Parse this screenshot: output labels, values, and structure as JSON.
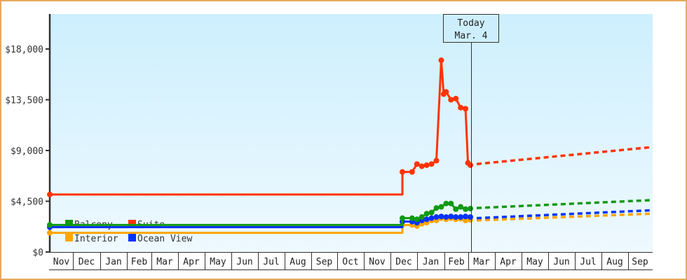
{
  "chart_data": {
    "type": "line",
    "title": "",
    "xlabel": "",
    "ylabel": "",
    "ylim": [
      0,
      21000
    ],
    "y_ticks": [
      "$0",
      "$4,500",
      "$9,000",
      "$13,500",
      "$18,000"
    ],
    "y_tick_values": [
      0,
      4500,
      9000,
      13500,
      18000
    ],
    "x_tick_labels": [
      "Nov",
      "Dec",
      "Jan",
      "Feb",
      "Mar",
      "Apr",
      "May",
      "Jun",
      "Jul",
      "Aug",
      "Sep",
      "Oct",
      "Nov",
      "Dec",
      "Jan",
      "Feb",
      "Mar",
      "Apr",
      "May",
      "Jun",
      "Jul",
      "Aug",
      "Sep"
    ],
    "grid": false,
    "legend_position": "bottom-left inside",
    "today_marker": {
      "line1": "Today",
      "line2": "Mar. 4"
    },
    "series": [
      {
        "name": "Balcony",
        "color": "#119911",
        "historical": [
          [
            0,
            2400
          ],
          [
            31,
            2400
          ],
          [
            31,
            3000
          ],
          [
            33,
            3000
          ],
          [
            34,
            2900
          ],
          [
            35,
            3100
          ],
          [
            36,
            3400
          ],
          [
            37,
            3500
          ],
          [
            38,
            3900
          ],
          [
            39,
            4000
          ],
          [
            40,
            4300
          ],
          [
            41,
            4300
          ],
          [
            42,
            3800
          ],
          [
            43,
            4000
          ],
          [
            44,
            3800
          ],
          [
            45,
            3850
          ]
        ],
        "forecast_start": 3900,
        "forecast_end": 4600
      },
      {
        "name": "Suite",
        "color": "#ff3300",
        "historical": [
          [
            0,
            5100
          ],
          [
            31,
            5100
          ],
          [
            31,
            7100
          ],
          [
            33,
            7100
          ],
          [
            34,
            7800
          ],
          [
            35,
            7600
          ],
          [
            36,
            7700
          ],
          [
            37,
            7800
          ],
          [
            38,
            8100
          ],
          [
            39,
            17000
          ],
          [
            39.5,
            14000
          ],
          [
            40,
            14200
          ],
          [
            41,
            13500
          ],
          [
            42,
            13600
          ],
          [
            43,
            12800
          ],
          [
            44,
            12700
          ],
          [
            44.5,
            7900
          ],
          [
            45,
            7700
          ]
        ],
        "forecast_start": 7800,
        "forecast_end": 9300
      },
      {
        "name": "Interior",
        "color": "#ffa500",
        "historical": [
          [
            0,
            1700
          ],
          [
            31,
            1700
          ],
          [
            31,
            2400
          ],
          [
            33,
            2400
          ],
          [
            34,
            2300
          ],
          [
            35,
            2500
          ],
          [
            36,
            2600
          ],
          [
            37,
            2800
          ],
          [
            38,
            2800
          ],
          [
            39,
            3000
          ],
          [
            40,
            2900
          ],
          [
            41,
            3000
          ],
          [
            42,
            2900
          ],
          [
            43,
            2950
          ],
          [
            44,
            2800
          ],
          [
            45,
            2850
          ]
        ],
        "forecast_start": 2800,
        "forecast_end": 3400
      },
      {
        "name": "Ocean View",
        "color": "#0033ff",
        "historical": [
          [
            0,
            2200
          ],
          [
            31,
            2200
          ],
          [
            31,
            2700
          ],
          [
            33,
            2700
          ],
          [
            34,
            2600
          ],
          [
            35,
            2800
          ],
          [
            36,
            2900
          ],
          [
            37,
            3000
          ],
          [
            38,
            3100
          ],
          [
            39,
            3150
          ],
          [
            40,
            3100
          ],
          [
            41,
            3150
          ],
          [
            42,
            3100
          ],
          [
            43,
            3100
          ],
          [
            44,
            3150
          ],
          [
            45,
            3100
          ]
        ],
        "forecast_start": 3000,
        "forecast_end": 3700
      }
    ]
  },
  "legend": {
    "items": [
      {
        "label": "Balcony",
        "color": "#119911"
      },
      {
        "label": "Suite",
        "color": "#ff3300"
      },
      {
        "label": "Interior",
        "color": "#ffa500"
      },
      {
        "label": "Ocean View",
        "color": "#0033ff"
      }
    ]
  },
  "colors": {
    "frame": "#e8a860",
    "plot_top": "#cdeffd",
    "plot_bottom": "#eef9fe",
    "axis": "#333333"
  }
}
